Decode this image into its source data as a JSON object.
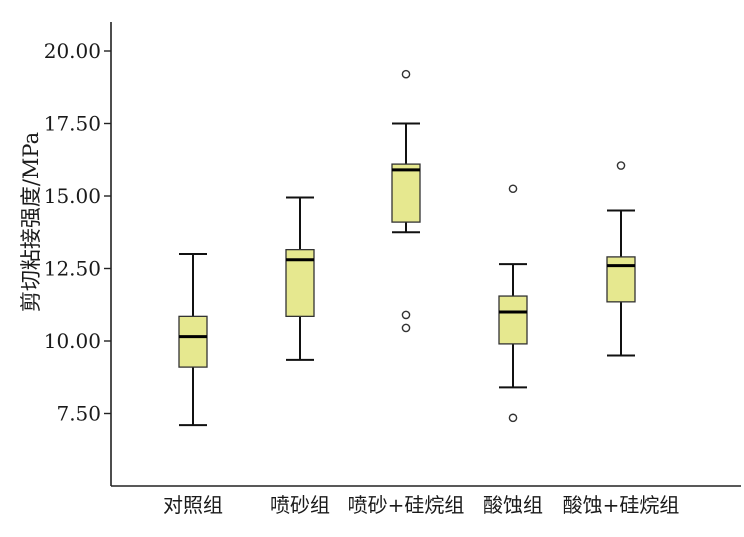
{
  "chart_data": {
    "type": "boxplot",
    "title": "",
    "xlabel": "",
    "ylabel": "剪切粘接强度/MPa",
    "ylim": [
      5.0,
      21.0
    ],
    "yticks": [
      7.5,
      10.0,
      12.5,
      15.0,
      17.5,
      20.0
    ],
    "ytick_labels": [
      "7.50",
      "10.00",
      "12.50",
      "15.00",
      "17.50",
      "20.00"
    ],
    "grid": false,
    "box_color": "#e6e88f",
    "categories": [
      "对照组",
      "喷砂组",
      "喷砂+硅烷组",
      "酸蚀组",
      "酸蚀+硅烷组"
    ],
    "boxes": [
      {
        "category": "对照组",
        "min": 7.1,
        "q1": 9.1,
        "median": 10.15,
        "q3": 10.85,
        "max": 13.0,
        "outliers": []
      },
      {
        "category": "喷砂组",
        "min": 9.35,
        "q1": 10.85,
        "median": 12.8,
        "q3": 13.15,
        "max": 14.95,
        "outliers": []
      },
      {
        "category": "喷砂+硅烷组",
        "min": 13.75,
        "q1": 14.1,
        "median": 15.9,
        "q3": 16.1,
        "max": 17.5,
        "outliers": [
          19.2,
          10.9,
          10.45
        ]
      },
      {
        "category": "酸蚀组",
        "min": 8.4,
        "q1": 9.9,
        "median": 11.0,
        "q3": 11.55,
        "max": 12.65,
        "outliers": [
          15.25,
          7.35
        ]
      },
      {
        "category": "酸蚀+硅烷组",
        "min": 9.5,
        "q1": 11.35,
        "median": 12.6,
        "q3": 12.9,
        "max": 14.5,
        "outliers": [
          16.05
        ]
      }
    ]
  }
}
